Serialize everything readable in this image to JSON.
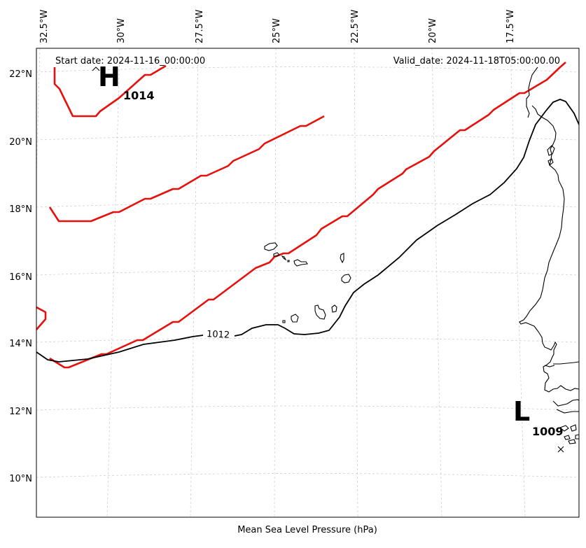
{
  "map": {
    "header_left": "Start date: 2024-11-16_00:00:00",
    "header_right": "Valid_date: 2024-11-18T05:00:00.00",
    "footer_title": "Mean Sea Level Pressure (hPa)",
    "lon_ticks": [
      "32.5°W",
      "30°W",
      "27.5°W",
      "25°W",
      "22.5°W",
      "20°W",
      "17.5°W"
    ],
    "lat_ticks": [
      "22°N",
      "20°N",
      "18°N",
      "16°N",
      "14°N",
      "12°N",
      "10°N"
    ],
    "high": {
      "letter": "H",
      "value": "1014"
    },
    "low": {
      "letter": "L",
      "value": "1009"
    },
    "contour_label": "1012",
    "colors": {
      "red_isobar": "#e8100c",
      "black_isobar": "#000000",
      "grid": "#cfcfcf"
    }
  }
}
